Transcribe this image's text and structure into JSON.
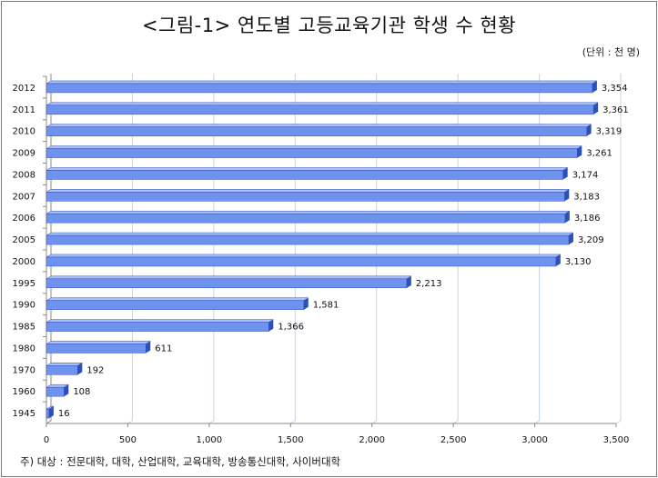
{
  "chart_data": {
    "type": "bar",
    "orientation": "horizontal",
    "title": "<그림-1> 연도별 고등교육기관 학생 수 현황",
    "unit_note": "(단위 : 천 명)",
    "footnote": "주) 대상 : 전문대학, 대학, 산업대학, 교육대학, 방송통신대학, 사이버대학",
    "categories": [
      "2012",
      "2011",
      "2010",
      "2009",
      "2008",
      "2007",
      "2006",
      "2005",
      "2000",
      "1995",
      "1990",
      "1985",
      "1980",
      "1970",
      "1960",
      "1945"
    ],
    "values": [
      3354,
      3361,
      3319,
      3261,
      3174,
      3183,
      3186,
      3209,
      3130,
      2213,
      1581,
      1366,
      611,
      192,
      108,
      16
    ],
    "value_labels": [
      "3,354",
      "3,361",
      "3,319",
      "3,261",
      "3,174",
      "3,183",
      "3,186",
      "3,209",
      "3,130",
      "2,213",
      "1,581",
      "1,366",
      "611",
      "192",
      "108",
      "16"
    ],
    "xlim": [
      0,
      3500
    ],
    "x_ticks": [
      0,
      500,
      1000,
      1500,
      2000,
      2500,
      3000,
      3500
    ],
    "x_tick_labels": [
      "0",
      "500",
      "1,000",
      "1,500",
      "2,000",
      "2,500",
      "3,000",
      "3,500"
    ],
    "xlabel": "",
    "ylabel": "",
    "grid": true,
    "legend": "none",
    "colors": {
      "bar_fill": "#6e92ee",
      "bar_top": "#a9c1fa",
      "bar_side": "#2f4fb8",
      "grid": "#c8d4e6",
      "axis": "#8a8a8a"
    }
  }
}
